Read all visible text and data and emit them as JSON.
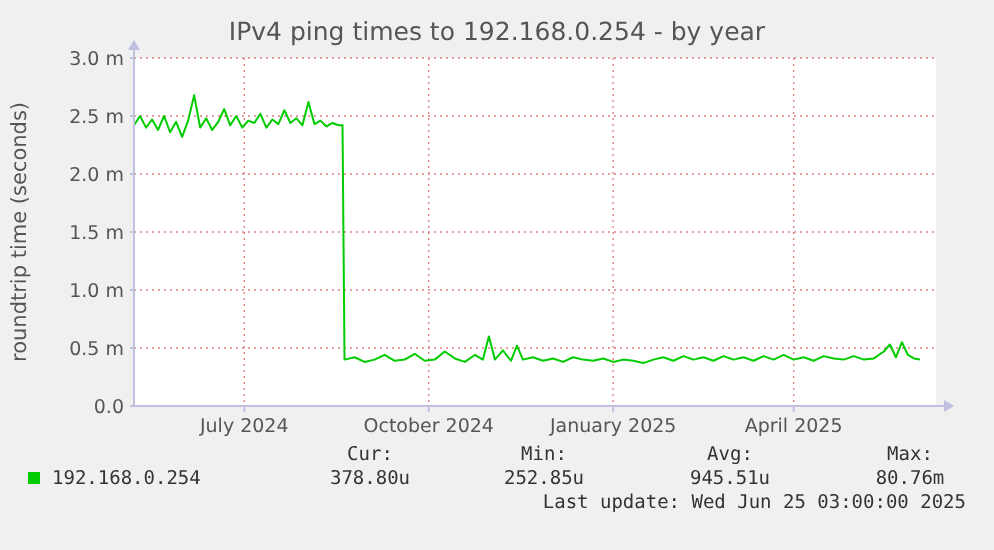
{
  "chart_data": {
    "type": "line",
    "title": "IPv4 ping times to 192.168.0.254 - by year",
    "ylabel": "roundtrip time (seconds)",
    "x": [
      "2024-05-21",
      "2024-05-24",
      "2024-05-27",
      "2024-05-30",
      "2024-06-02",
      "2024-06-05",
      "2024-06-08",
      "2024-06-11",
      "2024-06-14",
      "2024-06-17",
      "2024-06-20",
      "2024-06-23",
      "2024-06-26",
      "2024-06-29",
      "2024-07-02",
      "2024-07-05",
      "2024-07-08",
      "2024-07-11",
      "2024-07-14",
      "2024-07-17",
      "2024-07-20",
      "2024-07-23",
      "2024-07-26",
      "2024-07-29",
      "2024-08-01",
      "2024-08-04",
      "2024-08-07",
      "2024-08-10",
      "2024-08-13",
      "2024-08-16",
      "2024-08-19",
      "2024-08-22",
      "2024-08-25",
      "2024-08-28",
      "2024-08-31",
      "2024-09-02",
      "2024-09-03",
      "2024-09-08",
      "2024-09-13",
      "2024-09-18",
      "2024-09-23",
      "2024-09-28",
      "2024-10-03",
      "2024-10-08",
      "2024-10-13",
      "2024-10-18",
      "2024-10-23",
      "2024-10-28",
      "2024-11-02",
      "2024-11-07",
      "2024-11-11",
      "2024-11-14",
      "2024-11-17",
      "2024-11-21",
      "2024-11-25",
      "2024-11-28",
      "2024-12-01",
      "2024-12-06",
      "2024-12-11",
      "2024-12-16",
      "2024-12-21",
      "2024-12-26",
      "2024-12-31",
      "2025-01-05",
      "2025-01-10",
      "2025-01-15",
      "2025-01-20",
      "2025-01-25",
      "2025-01-30",
      "2025-02-04",
      "2025-02-09",
      "2025-02-14",
      "2025-02-19",
      "2025-02-24",
      "2025-03-01",
      "2025-03-06",
      "2025-03-11",
      "2025-03-16",
      "2025-03-21",
      "2025-03-26",
      "2025-03-31",
      "2025-04-05",
      "2025-04-10",
      "2025-04-15",
      "2025-04-20",
      "2025-04-25",
      "2025-04-30",
      "2025-05-05",
      "2025-05-10",
      "2025-05-15",
      "2025-05-20",
      "2025-05-25",
      "2025-05-30",
      "2025-06-02",
      "2025-06-05",
      "2025-06-08",
      "2025-06-11",
      "2025-06-14",
      "2025-06-17"
    ],
    "series": [
      {
        "name": "192.168.0.254",
        "color": "#00cc00",
        "values": [
          2.42,
          2.5,
          2.4,
          2.47,
          2.38,
          2.5,
          2.36,
          2.45,
          2.32,
          2.46,
          2.68,
          2.4,
          2.48,
          2.38,
          2.45,
          2.56,
          2.42,
          2.5,
          2.4,
          2.46,
          2.44,
          2.52,
          2.4,
          2.47,
          2.43,
          2.55,
          2.44,
          2.48,
          2.42,
          2.62,
          2.43,
          2.46,
          2.41,
          2.44,
          2.42,
          2.42,
          0.4,
          0.42,
          0.38,
          0.4,
          0.44,
          0.39,
          0.4,
          0.45,
          0.39,
          0.4,
          0.47,
          0.41,
          0.38,
          0.44,
          0.4,
          0.6,
          0.4,
          0.48,
          0.39,
          0.52,
          0.4,
          0.42,
          0.39,
          0.41,
          0.38,
          0.42,
          0.4,
          0.39,
          0.41,
          0.38,
          0.4,
          0.39,
          0.37,
          0.4,
          0.42,
          0.39,
          0.43,
          0.4,
          0.42,
          0.39,
          0.43,
          0.4,
          0.42,
          0.39,
          0.43,
          0.4,
          0.44,
          0.4,
          0.42,
          0.39,
          0.43,
          0.41,
          0.4,
          0.43,
          0.4,
          0.41,
          0.47,
          0.53,
          0.42,
          0.55,
          0.44,
          0.41,
          0.4
        ]
      }
    ],
    "xlim": [
      "2024-05-21",
      "2025-06-25"
    ],
    "xticks": [
      {
        "value": "2024-07-15",
        "label": "July 2024"
      },
      {
        "value": "2024-10-15",
        "label": "October 2024"
      },
      {
        "value": "2025-01-15",
        "label": "January 2025"
      },
      {
        "value": "2025-04-15",
        "label": "April 2025"
      }
    ],
    "ylim": [
      0,
      3
    ],
    "yticks": [
      {
        "value": 0,
        "label": "0.0"
      },
      {
        "value": 0.5,
        "label": "0.5 m"
      },
      {
        "value": 1,
        "label": "1.0 m"
      },
      {
        "value": 1.5,
        "label": "1.5 m"
      },
      {
        "value": 2,
        "label": "2.0 m"
      },
      {
        "value": 2.5,
        "label": "2.5 m"
      },
      {
        "value": 3,
        "label": "3.0 m"
      }
    ],
    "grid": true,
    "legend": "bottom",
    "marker": "none",
    "line_style": "solid",
    "annotations": [
      "Cur:",
      "378.80u",
      "Min:",
      "252.85u",
      "Avg:",
      "945.51u",
      "Max:",
      "80.76m",
      "Last update: Wed Jun 25 03:00:00 2025"
    ]
  }
}
